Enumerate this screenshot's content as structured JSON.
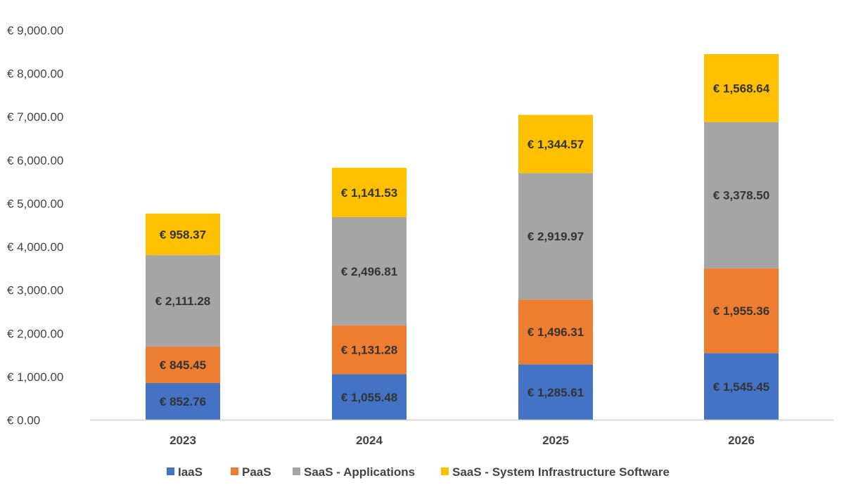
{
  "colors": {
    "iaas": "#4472C4",
    "paas": "#ED7D31",
    "saas_apps": "#A5A5A5",
    "saas_infra": "#FFC000",
    "axis": "#d0d0d0",
    "text": "#444444"
  },
  "chart_data": {
    "type": "bar",
    "stacked": true,
    "title": "",
    "xlabel": "",
    "ylabel": "",
    "ylim": [
      0,
      9000
    ],
    "y_ticks": [
      0,
      1000,
      2000,
      3000,
      4000,
      5000,
      6000,
      7000,
      8000,
      9000
    ],
    "y_tick_labels": [
      "€ 0.00",
      "€ 1,000.00",
      "€ 2,000.00",
      "€ 3,000.00",
      "€ 4,000.00",
      "€ 5,000.00",
      "€ 6,000.00",
      "€ 7,000.00",
      "€ 8,000.00",
      "€ 9,000.00"
    ],
    "grid": false,
    "legend_position": "bottom",
    "categories": [
      "2023",
      "2024",
      "2025",
      "2026"
    ],
    "series": [
      {
        "name": "IaaS",
        "color_key": "iaas",
        "values": [
          852.76,
          1055.48,
          1285.61,
          1545.45
        ],
        "labels": [
          "€ 852.76",
          "€ 1,055.48",
          "€ 1,285.61",
          "€ 1,545.45"
        ]
      },
      {
        "name": "PaaS",
        "color_key": "paas",
        "values": [
          845.45,
          1131.28,
          1496.31,
          1955.36
        ],
        "labels": [
          "€ 845.45",
          "€ 1,131.28",
          "€ 1,496.31",
          "€ 1,955.36"
        ]
      },
      {
        "name": "SaaS - Applications",
        "color_key": "saas_apps",
        "values": [
          2111.28,
          2496.81,
          2919.97,
          3378.5
        ],
        "labels": [
          "€ 2,111.28",
          "€ 2,496.81",
          "€ 2,919.97",
          "€ 3,378.50"
        ]
      },
      {
        "name": "SaaS - System Infrastructure Software",
        "color_key": "saas_infra",
        "values": [
          958.37,
          1141.53,
          1344.57,
          1568.64
        ],
        "labels": [
          "€ 958.37",
          "€ 1,141.53",
          "€ 1,344.57",
          "€ 1,568.64"
        ]
      }
    ]
  }
}
